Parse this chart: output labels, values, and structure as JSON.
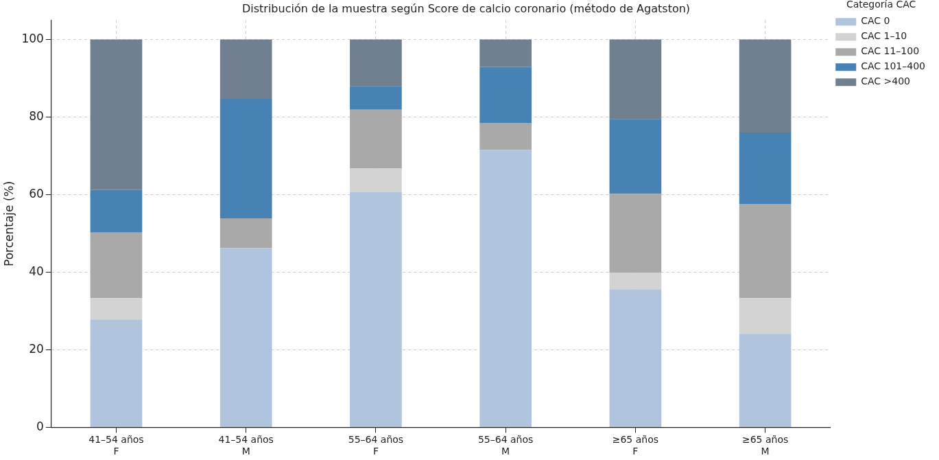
{
  "chart_data": {
    "type": "bar",
    "stacked": true,
    "title": "Distribución de la muestra según Score de calcio coronario (método de Agatston)",
    "ylabel": "Porcentaje (%)",
    "legend_title": "Categoría CAC",
    "legend": "right",
    "grid": true,
    "categories": [
      "41–54 años\nF",
      "41–54 años\nM",
      "55–64 años\nF",
      "55–64 años\nM",
      "≥65 años\nF",
      "≥65 años\nM"
    ],
    "ylim": [
      0,
      105
    ],
    "yticks": [
      0,
      20,
      40,
      60,
      80,
      100
    ],
    "series": [
      {
        "name": "CAC 0",
        "color": "#b0c4de",
        "values": [
          27.8,
          46.2,
          60.6,
          71.5,
          35.6,
          24.1
        ]
      },
      {
        "name": "CAC 1–10",
        "color": "#d3d3d3",
        "values": [
          5.5,
          0,
          6.1,
          0,
          4.2,
          9.2
        ]
      },
      {
        "name": "CAC 11–100",
        "color": "#a9a9a9",
        "values": [
          16.9,
          7.7,
          15.2,
          7.0,
          20.4,
          24.3
        ]
      },
      {
        "name": "CAC 101–400",
        "color": "#4682b4",
        "values": [
          11.0,
          30.8,
          6.1,
          14.4,
          19.3,
          18.4
        ]
      },
      {
        "name": "CAC >400",
        "color": "#708090",
        "values": [
          38.8,
          15.3,
          12.0,
          7.1,
          20.5,
          24.0
        ]
      }
    ]
  }
}
